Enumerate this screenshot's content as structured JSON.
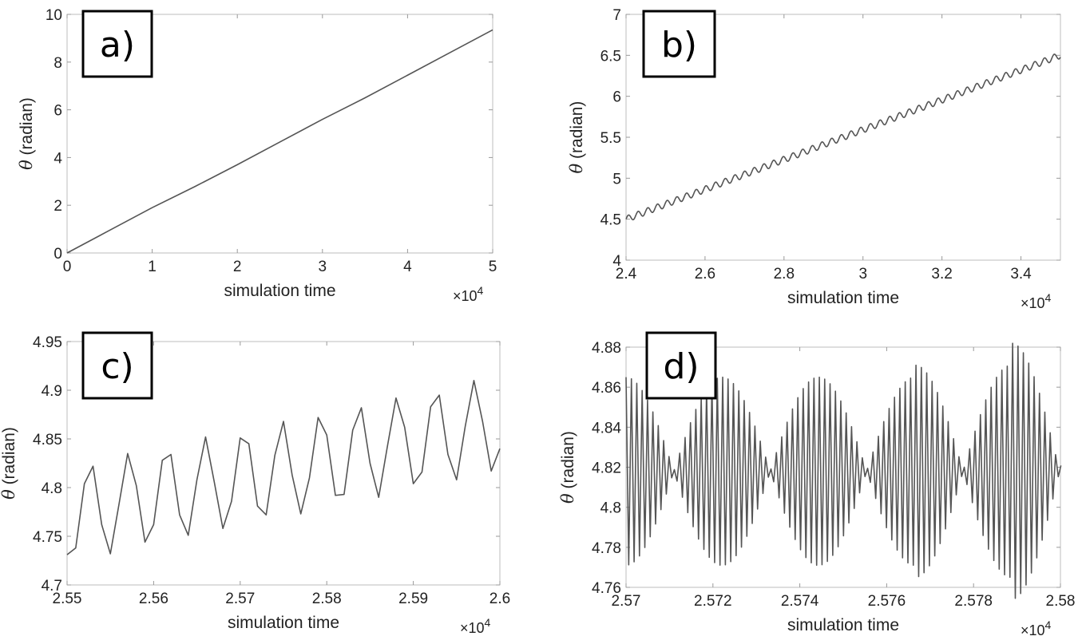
{
  "chart_data": [
    {
      "type": "line",
      "panel_label": "a)",
      "xlabel": "simulation time",
      "ylabel_symbol": "θ",
      "ylabel": " (radian)",
      "x_multiplier_base": "×10",
      "x_multiplier_exp": "4",
      "xlim": [
        0,
        5
      ],
      "ylim": [
        0,
        10
      ],
      "xticks": [
        0,
        1,
        2,
        3,
        4,
        5
      ],
      "xtick_labels": [
        "0",
        "1",
        "2",
        "3",
        "4",
        "5"
      ],
      "yticks": [
        0,
        2,
        4,
        6,
        8,
        10
      ],
      "ytick_labels": [
        "0",
        "2",
        "4",
        "6",
        "8",
        "10"
      ],
      "series": [
        {
          "name": "theta",
          "color": "#555555",
          "x": [
            0,
            0.5,
            1,
            1.5,
            2,
            2.5,
            3,
            3.5,
            4,
            4.5,
            5
          ],
          "y": [
            0,
            0.95,
            1.9,
            2.78,
            3.7,
            4.65,
            5.6,
            6.5,
            7.45,
            8.4,
            9.35
          ]
        }
      ]
    },
    {
      "type": "line",
      "panel_label": "b)",
      "xlabel": "simulation time",
      "ylabel_symbol": "θ",
      "ylabel": " (radian)",
      "x_multiplier_base": "×10",
      "x_multiplier_exp": "4",
      "xlim": [
        2.4,
        3.5
      ],
      "ylim": [
        4,
        7
      ],
      "xticks": [
        2.4,
        2.6,
        2.8,
        3.0,
        3.2,
        3.4
      ],
      "xtick_labels": [
        "2.4",
        "2.6",
        "2.8",
        "3",
        "3.2",
        "3.4"
      ],
      "yticks": [
        4,
        4.5,
        5,
        5.5,
        6,
        6.5,
        7
      ],
      "ytick_labels": [
        "4",
        "4.5",
        "5",
        "5.5",
        "6",
        "6.5",
        "7"
      ],
      "series": [
        {
          "name": "theta",
          "color": "#555555",
          "function": {
            "x_start": 2.4,
            "x_end": 3.5,
            "intercept": 4.5,
            "slope": 1.82,
            "amplitude": 0.04,
            "period": 0.0245,
            "samples": 700
          }
        }
      ]
    },
    {
      "type": "line",
      "panel_label": "c)",
      "xlabel": "simulation time",
      "ylabel_symbol": "θ",
      "ylabel": " (radian)",
      "x_multiplier_base": "×10",
      "x_multiplier_exp": "4",
      "xlim": [
        2.55,
        2.6
      ],
      "ylim": [
        4.7,
        4.95
      ],
      "xticks": [
        2.55,
        2.56,
        2.57,
        2.58,
        2.59,
        2.6
      ],
      "xtick_labels": [
        "2.55",
        "2.56",
        "2.57",
        "2.58",
        "2.59",
        "2.6"
      ],
      "yticks": [
        4.7,
        4.75,
        4.8,
        4.85,
        4.9,
        4.95
      ],
      "ytick_labels": [
        "4.7",
        "4.75",
        "4.8",
        "4.85",
        "4.9",
        "4.95"
      ],
      "series": [
        {
          "name": "theta",
          "color": "#555555",
          "x": [
            2.55,
            2.551,
            2.552,
            2.553,
            2.554,
            2.555,
            2.556,
            2.557,
            2.558,
            2.559,
            2.56,
            2.561,
            2.562,
            2.563,
            2.564,
            2.565,
            2.566,
            2.567,
            2.568,
            2.569,
            2.57,
            2.571,
            2.572,
            2.573,
            2.574,
            2.575,
            2.576,
            2.577,
            2.578,
            2.579,
            2.58,
            2.581,
            2.582,
            2.583,
            2.584,
            2.585,
            2.586,
            2.587,
            2.588,
            2.589,
            2.59,
            2.591,
            2.592,
            2.593,
            2.594,
            2.595,
            2.596,
            2.597,
            2.598,
            2.599,
            2.6
          ],
          "y": [
            4.731,
            4.738,
            4.804,
            4.822,
            4.762,
            4.732,
            4.783,
            4.835,
            4.802,
            4.744,
            4.762,
            4.828,
            4.834,
            4.772,
            4.751,
            4.808,
            4.852,
            4.806,
            4.758,
            4.786,
            4.851,
            4.845,
            4.781,
            4.772,
            4.833,
            4.868,
            4.813,
            4.773,
            4.81,
            4.872,
            4.854,
            4.792,
            4.793,
            4.859,
            4.882,
            4.825,
            4.79,
            4.842,
            4.892,
            4.862,
            4.804,
            4.816,
            4.883,
            4.895,
            4.834,
            4.808,
            4.863,
            4.91,
            4.868,
            4.817,
            4.84
          ]
        }
      ]
    },
    {
      "type": "line",
      "panel_label": "d)",
      "xlabel": "simulation time",
      "ylabel_symbol": "θ",
      "ylabel": " (radian)",
      "x_multiplier_base": "×10",
      "x_multiplier_exp": "4",
      "xlim": [
        2.57,
        2.58
      ],
      "ylim": [
        4.76,
        4.88
      ],
      "xticks": [
        2.57,
        2.572,
        2.574,
        2.576,
        2.578,
        2.58
      ],
      "xtick_labels": [
        "2.57",
        "2.572",
        "2.574",
        "2.576",
        "2.578",
        "2.58"
      ],
      "yticks": [
        4.76,
        4.78,
        4.8,
        4.82,
        4.84,
        4.86,
        4.88
      ],
      "ytick_labels": [
        "4.76",
        "4.78",
        "4.8",
        "4.82",
        "4.84",
        "4.86",
        "4.88"
      ],
      "series": [
        {
          "name": "theta",
          "color": "#555555",
          "beat_signal": {
            "x_start": 2.57,
            "x_end": 2.58,
            "center": 4.818,
            "amplitudes": [
              0.047,
              0.047,
              0.047,
              0.053,
              0.064
            ],
            "envelope_period": 0.00222,
            "null_at": 2.5711,
            "step": 6.18e-05
          }
        }
      ]
    }
  ]
}
